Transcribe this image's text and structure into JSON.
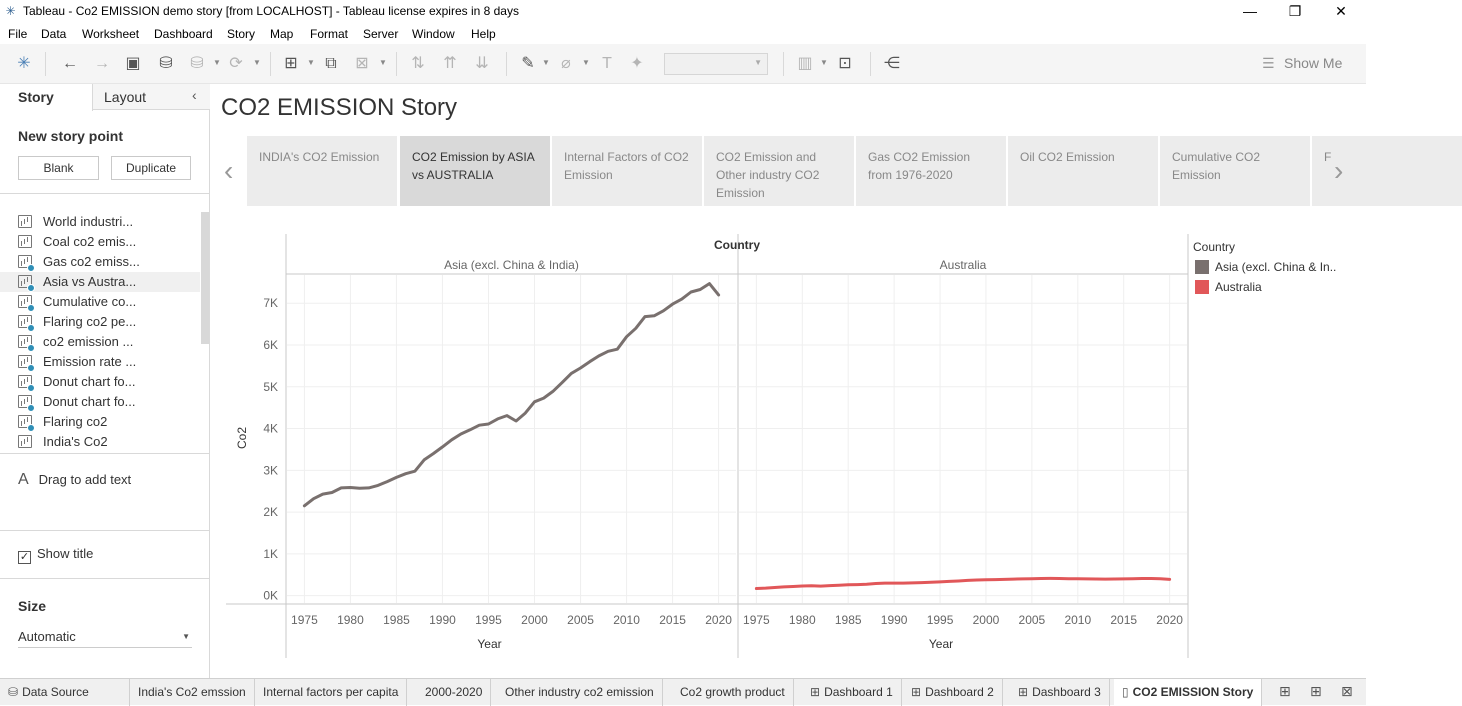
{
  "window": {
    "title": "Tableau - Co2 EMISSION demo story [from LOCALHOST] - Tableau license expires in 8 days",
    "minimize": "—",
    "restore": "❐",
    "close": "✕"
  },
  "menu": [
    "File",
    "Data",
    "Worksheet",
    "Dashboard",
    "Story",
    "Map",
    "Format",
    "Server",
    "Window",
    "Help"
  ],
  "toolbar": {
    "show_me": "Show Me"
  },
  "left_pane": {
    "tab_story": "Story",
    "tab_layout": "Layout",
    "collapse": "‹",
    "new_story_point": "New story point",
    "blank_button": "Blank",
    "duplicate_button": "Duplicate",
    "sheets": [
      "World industri...",
      "Coal co2 emis...",
      "Gas co2 emiss...",
      "Asia vs Austra...",
      "Cumulative co...",
      "Flaring co2 pe...",
      "co2 emission ...",
      "Emission rate ...",
      "Donut chart fo...",
      "Donut chart fo...",
      "Flaring co2",
      "India's Co2"
    ],
    "drag_text": "Drag to add text",
    "drag_icon": "A",
    "show_title": "Show title",
    "show_title_checked": "✓",
    "size_label": "Size",
    "size_value": "Automatic"
  },
  "story": {
    "title": "CO2 EMISSION Story",
    "prev": "‹",
    "next": "›",
    "points": [
      "INDIA's CO2 Emission",
      "CO2 Emission by ASIA vs AUSTRALIA",
      "Internal Factors of CO2 Emission",
      "CO2 Emission and Other industry CO2 Emission",
      "Gas CO2 Emission from 1976-2020",
      "Oil CO2 Emission",
      "Cumulative CO2 Emission",
      "F"
    ],
    "active_index": 1
  },
  "legend": {
    "title": "Country",
    "items": [
      {
        "label": "Asia (excl. China & In..",
        "color": "#79706e"
      },
      {
        "label": "Australia",
        "color": "#e15759"
      }
    ]
  },
  "chart_data": {
    "type": "line",
    "title": "Country",
    "ylabel": "Co2",
    "xlabel": "Year",
    "ylim": [
      -200,
      7700
    ],
    "yticks": [
      "0K",
      "1K",
      "2K",
      "3K",
      "4K",
      "5K",
      "6K",
      "7K"
    ],
    "xticks": [
      1975,
      1980,
      1985,
      1990,
      1995,
      2000,
      2005,
      2010,
      2015,
      2020
    ],
    "grid": true,
    "panels": [
      {
        "name": "Asia (excl. China & India)",
        "color": "#79706e",
        "x": [
          1975,
          1976,
          1977,
          1978,
          1979,
          1980,
          1981,
          1982,
          1983,
          1984,
          1985,
          1986,
          1987,
          1988,
          1989,
          1990,
          1991,
          1992,
          1993,
          1994,
          1995,
          1996,
          1997,
          1998,
          1999,
          2000,
          2001,
          2002,
          2003,
          2004,
          2005,
          2006,
          2007,
          2008,
          2009,
          2010,
          2011,
          2012,
          2013,
          2014,
          2015,
          2016,
          2017,
          2018,
          2019,
          2020
        ],
        "y": [
          2150,
          2320,
          2430,
          2470,
          2580,
          2590,
          2570,
          2580,
          2640,
          2730,
          2830,
          2920,
          2980,
          3250,
          3400,
          3560,
          3730,
          3870,
          3970,
          4080,
          4110,
          4230,
          4310,
          4180,
          4370,
          4640,
          4730,
          4890,
          5100,
          5320,
          5450,
          5600,
          5740,
          5850,
          5900,
          6200,
          6400,
          6680,
          6700,
          6820,
          6980,
          7100,
          7270,
          7330,
          7470,
          7200
        ]
      },
      {
        "name": "Australia",
        "color": "#e15759",
        "x": [
          1975,
          1976,
          1977,
          1978,
          1979,
          1980,
          1981,
          1982,
          1983,
          1984,
          1985,
          1986,
          1987,
          1988,
          1989,
          1990,
          1991,
          1992,
          1993,
          1994,
          1995,
          1996,
          1997,
          1998,
          1999,
          2000,
          2001,
          2002,
          2003,
          2004,
          2005,
          2006,
          2007,
          2008,
          2009,
          2010,
          2011,
          2012,
          2013,
          2014,
          2015,
          2016,
          2017,
          2018,
          2019,
          2020
        ],
        "y": [
          170,
          180,
          195,
          210,
          220,
          230,
          235,
          228,
          240,
          250,
          260,
          265,
          275,
          290,
          300,
          300,
          300,
          305,
          312,
          320,
          330,
          340,
          350,
          365,
          375,
          380,
          385,
          390,
          395,
          400,
          405,
          410,
          412,
          410,
          405,
          405,
          400,
          398,
          395,
          398,
          402,
          405,
          410,
          410,
          405,
          390
        ]
      }
    ]
  },
  "bottom_tabs": {
    "data_source": "Data Source",
    "tabs": [
      {
        "label": "India's Co2 emssion",
        "icon": ""
      },
      {
        "label": "Internal factors per capita",
        "icon": ""
      },
      {
        "label": "2000-2020",
        "icon": ""
      },
      {
        "label": "Other industry co2 emission",
        "icon": ""
      },
      {
        "label": "Co2 growth product",
        "icon": ""
      },
      {
        "label": "Dashboard 1",
        "icon": "⊞"
      },
      {
        "label": "Dashboard 2",
        "icon": "⊞"
      },
      {
        "label": "Dashboard 3",
        "icon": "⊞"
      },
      {
        "label": "CO2 EMISSION Story",
        "icon": "▯"
      }
    ]
  }
}
